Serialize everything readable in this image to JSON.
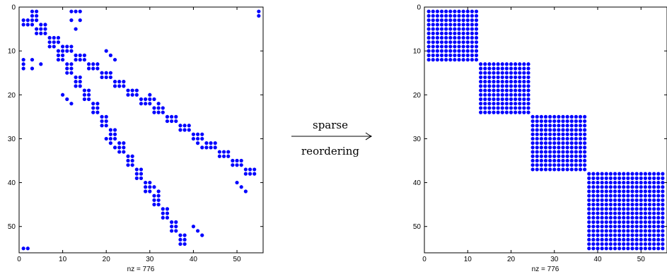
{
  "arrow_top_label": "sparse",
  "arrow_bottom_label": "reordering",
  "marker_color": "#0000ff",
  "chart_data": [
    {
      "type": "scatter",
      "title": "",
      "xlabel": "nz = 776",
      "ylabel": "",
      "xlim": [
        0,
        56
      ],
      "ylim": [
        0,
        56
      ],
      "y_axis_reversed": true,
      "xticks": [
        0,
        10,
        20,
        30,
        40,
        50
      ],
      "yticks": [
        0,
        10,
        20,
        30,
        40,
        50
      ],
      "grid": false,
      "pattern": "symmetric sparse pattern (original ordering)",
      "points": [
        [
          1,
          55
        ],
        [
          2,
          55
        ],
        [
          3,
          1
        ],
        [
          3,
          2
        ],
        [
          3,
          3
        ],
        [
          4,
          1
        ],
        [
          4,
          2
        ],
        [
          4,
          3
        ],
        [
          5,
          4
        ],
        [
          5,
          5
        ],
        [
          5,
          6
        ],
        [
          6,
          4
        ],
        [
          6,
          5
        ],
        [
          6,
          6
        ],
        [
          7,
          7
        ],
        [
          7,
          8
        ],
        [
          7,
          9
        ],
        [
          8,
          7
        ],
        [
          8,
          8
        ],
        [
          8,
          9
        ],
        [
          9,
          10
        ],
        [
          9,
          11
        ],
        [
          9,
          12
        ],
        [
          10,
          10
        ],
        [
          10,
          11
        ],
        [
          10,
          12
        ],
        [
          11,
          13
        ],
        [
          11,
          14
        ],
        [
          11,
          15
        ],
        [
          12,
          13
        ],
        [
          12,
          14
        ],
        [
          12,
          15
        ],
        [
          13,
          16
        ],
        [
          13,
          17
        ],
        [
          13,
          18
        ],
        [
          14,
          16
        ],
        [
          14,
          17
        ],
        [
          14,
          18
        ],
        [
          15,
          19
        ],
        [
          15,
          20
        ],
        [
          15,
          21
        ],
        [
          16,
          19
        ],
        [
          16,
          20
        ],
        [
          16,
          21
        ],
        [
          17,
          22
        ],
        [
          17,
          23
        ],
        [
          17,
          24
        ],
        [
          18,
          22
        ],
        [
          18,
          23
        ],
        [
          18,
          24
        ],
        [
          19,
          25
        ],
        [
          19,
          26
        ],
        [
          19,
          27
        ],
        [
          20,
          25
        ],
        [
          20,
          26
        ],
        [
          20,
          27
        ],
        [
          21,
          28
        ],
        [
          21,
          29
        ],
        [
          21,
          30
        ],
        [
          22,
          28
        ],
        [
          22,
          29
        ],
        [
          22,
          30
        ],
        [
          23,
          31
        ],
        [
          23,
          32
        ],
        [
          23,
          33
        ],
        [
          24,
          31
        ],
        [
          24,
          32
        ],
        [
          24,
          33
        ],
        [
          25,
          34
        ],
        [
          25,
          35
        ],
        [
          25,
          36
        ],
        [
          26,
          34
        ],
        [
          26,
          35
        ],
        [
          26,
          36
        ],
        [
          27,
          37
        ],
        [
          27,
          38
        ],
        [
          27,
          39
        ],
        [
          28,
          37
        ],
        [
          28,
          38
        ],
        [
          28,
          39
        ],
        [
          29,
          40
        ],
        [
          29,
          41
        ],
        [
          29,
          42
        ],
        [
          30,
          40
        ],
        [
          30,
          41
        ],
        [
          30,
          42
        ],
        [
          31,
          43
        ],
        [
          31,
          44
        ],
        [
          31,
          45
        ],
        [
          32,
          43
        ],
        [
          32,
          44
        ],
        [
          32,
          45
        ],
        [
          33,
          46
        ],
        [
          33,
          47
        ],
        [
          33,
          48
        ],
        [
          34,
          46
        ],
        [
          34,
          47
        ],
        [
          34,
          48
        ],
        [
          35,
          49
        ],
        [
          35,
          50
        ],
        [
          35,
          51
        ],
        [
          36,
          49
        ],
        [
          36,
          50
        ],
        [
          36,
          51
        ],
        [
          37,
          52
        ],
        [
          37,
          53
        ],
        [
          37,
          54
        ],
        [
          38,
          52
        ],
        [
          38,
          53
        ],
        [
          38,
          54
        ],
        [
          12,
          1
        ],
        [
          13,
          1
        ],
        [
          14,
          1
        ],
        [
          12,
          3
        ],
        [
          14,
          3
        ],
        [
          13,
          5
        ],
        [
          20,
          10
        ],
        [
          21,
          11
        ],
        [
          22,
          12
        ],
        [
          30,
          20
        ],
        [
          31,
          21
        ],
        [
          32,
          22
        ],
        [
          40,
          30
        ],
        [
          41,
          31
        ],
        [
          42,
          32
        ],
        [
          50,
          40
        ],
        [
          51,
          41
        ],
        [
          52,
          42
        ]
      ]
    },
    {
      "type": "scatter",
      "title": "",
      "xlabel": "nz = 776",
      "ylabel": "",
      "xlim": [
        0,
        56
      ],
      "ylim": [
        0,
        56
      ],
      "y_axis_reversed": true,
      "xticks": [
        0,
        10,
        20,
        30,
        40,
        50
      ],
      "yticks": [
        0,
        10,
        20,
        30,
        40,
        50
      ],
      "grid": false,
      "pattern": "block diagonal (after sparse reordering)",
      "blocks": [
        {
          "rows": [
            1,
            12
          ],
          "cols": [
            1,
            12
          ]
        },
        {
          "rows": [
            13,
            24
          ],
          "cols": [
            13,
            24
          ]
        },
        {
          "rows": [
            25,
            37
          ],
          "cols": [
            25,
            37
          ]
        },
        {
          "rows": [
            38,
            55
          ],
          "cols": [
            38,
            55
          ]
        }
      ]
    }
  ]
}
